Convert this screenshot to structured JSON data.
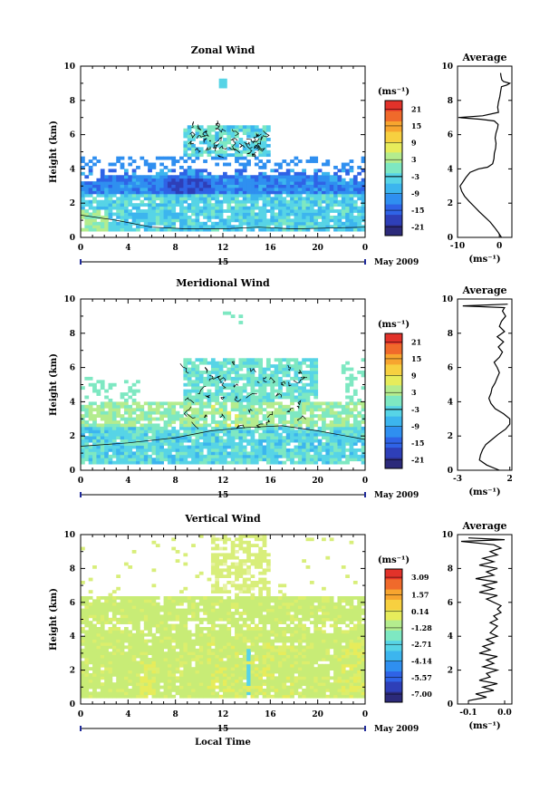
{
  "chart_data": [
    {
      "type": "heatmap",
      "title": "Zonal Wind",
      "ylabel": "Height (km)",
      "xticks": [
        "0",
        "4",
        "8",
        "12",
        "16",
        "20",
        "0"
      ],
      "yticks": [
        "0",
        "2",
        "4",
        "6",
        "8",
        "10"
      ],
      "xlim": [
        0,
        24
      ],
      "ylim": [
        0,
        10
      ],
      "date_axis": {
        "day": "15",
        "label": "May 2009"
      },
      "colorbar": {
        "unit": "(ms⁻¹)",
        "ticks": [
          "21",
          "15",
          "9",
          "3",
          "-3",
          "-9",
          "-15",
          "-21"
        ],
        "range": [
          -24,
          24
        ]
      },
      "average": {
        "title": "Average",
        "xlabel": "(ms⁻¹)",
        "xticks": [
          "-10",
          "0"
        ],
        "yticks": [
          "0",
          "2",
          "4",
          "6",
          "8",
          "10"
        ],
        "xlim": [
          -10,
          3
        ],
        "profile": [
          [
            0,
            0.5
          ],
          [
            0.3,
            -0.3
          ],
          [
            0.6,
            -1.2
          ],
          [
            0.9,
            -2.2
          ],
          [
            1.2,
            -3.5
          ],
          [
            1.5,
            -4.8
          ],
          [
            1.8,
            -6.0
          ],
          [
            2.1,
            -7.2
          ],
          [
            2.4,
            -8.3
          ],
          [
            2.7,
            -9.0
          ],
          [
            3.0,
            -9.4
          ],
          [
            3.2,
            -8.8
          ],
          [
            3.5,
            -8.0
          ],
          [
            3.8,
            -7.0
          ],
          [
            4.0,
            -5.0
          ],
          [
            4.1,
            -2.8
          ],
          [
            4.3,
            -1.6
          ],
          [
            4.6,
            -1.3
          ],
          [
            4.9,
            -1.2
          ],
          [
            5.2,
            -0.9
          ],
          [
            5.5,
            -0.8
          ],
          [
            5.8,
            -1.0
          ],
          [
            6.1,
            -0.8
          ],
          [
            6.4,
            -0.4
          ],
          [
            6.6,
            -0.3
          ],
          [
            6.8,
            -1.2
          ],
          [
            6.9,
            -4.5
          ],
          [
            7.0,
            -9.8
          ],
          [
            7.1,
            -4.0
          ],
          [
            7.3,
            -0.2
          ],
          [
            7.6,
            -0.4
          ],
          [
            7.9,
            -0.2
          ],
          [
            8.2,
            0.1
          ],
          [
            8.5,
            0.3
          ],
          [
            8.8,
            0.5
          ],
          [
            8.9,
            1.8
          ],
          [
            9.0,
            2.5
          ],
          [
            9.1,
            1.0
          ],
          [
            9.2,
            0.6
          ],
          [
            9.4,
            0.4
          ],
          [
            9.6,
            0.3
          ]
        ]
      }
    },
    {
      "type": "heatmap",
      "title": "Meridional Wind",
      "ylabel": "Height (km)",
      "xticks": [
        "0",
        "4",
        "8",
        "12",
        "16",
        "20",
        "0"
      ],
      "yticks": [
        "0",
        "2",
        "4",
        "6",
        "8",
        "10"
      ],
      "xlim": [
        0,
        24
      ],
      "ylim": [
        0,
        10
      ],
      "date_axis": {
        "day": "15",
        "label": "May 2009"
      },
      "colorbar": {
        "unit": "(ms⁻¹)",
        "ticks": [
          "21",
          "15",
          "9",
          "3",
          "-3",
          "-9",
          "-15",
          "-21"
        ],
        "range": [
          -24,
          24
        ]
      },
      "average": {
        "title": "Average",
        "xlabel": "(ms⁻¹)",
        "xticks": [
          "-3",
          "2"
        ],
        "yticks": [
          "0",
          "2",
          "4",
          "6",
          "8",
          "10"
        ],
        "xlim": [
          -3,
          2.2
        ],
        "profile": [
          [
            0,
            1.0
          ],
          [
            0.3,
            -0.2
          ],
          [
            0.6,
            -0.9
          ],
          [
            0.9,
            -0.8
          ],
          [
            1.2,
            -0.6
          ],
          [
            1.5,
            -0.3
          ],
          [
            1.8,
            0.3
          ],
          [
            2.1,
            0.9
          ],
          [
            2.4,
            1.6
          ],
          [
            2.7,
            2.0
          ],
          [
            3.0,
            2.0
          ],
          [
            3.3,
            1.4
          ],
          [
            3.6,
            0.6
          ],
          [
            3.9,
            0.2
          ],
          [
            4.2,
            0.0
          ],
          [
            4.5,
            0.2
          ],
          [
            4.8,
            0.3
          ],
          [
            5.1,
            0.6
          ],
          [
            5.4,
            0.8
          ],
          [
            5.7,
            1.0
          ],
          [
            6.0,
            0.8
          ],
          [
            6.3,
            0.5
          ],
          [
            6.6,
            1.0
          ],
          [
            6.9,
            1.3
          ],
          [
            7.2,
            0.9
          ],
          [
            7.5,
            1.4
          ],
          [
            7.8,
            0.8
          ],
          [
            8.1,
            1.5
          ],
          [
            8.4,
            1.0
          ],
          [
            8.7,
            1.2
          ],
          [
            9.0,
            1.6
          ],
          [
            9.3,
            1.3
          ],
          [
            9.5,
            1.5
          ],
          [
            9.6,
            -2.5
          ],
          [
            9.7,
            1.8
          ]
        ]
      }
    },
    {
      "type": "heatmap",
      "title": "Vertical Wind",
      "xlabel": "Local Time",
      "ylabel": "Height (km)",
      "xticks": [
        "0",
        "4",
        "8",
        "12",
        "16",
        "20",
        "0"
      ],
      "yticks": [
        "0",
        "2",
        "4",
        "6",
        "8",
        "10"
      ],
      "xlim": [
        0,
        24
      ],
      "ylim": [
        0,
        10
      ],
      "date_axis": {
        "day": "15",
        "label": "May 2009"
      },
      "colorbar": {
        "unit": "(ms⁻¹)",
        "ticks": [
          "3.09",
          "1.57",
          "0.14",
          "-1.28",
          "-2.71",
          "-4.14",
          "-5.57",
          "-7.00"
        ],
        "range": [
          -7.7,
          3.8
        ]
      },
      "average": {
        "title": "Average",
        "xlabel": "(ms⁻¹)",
        "xticks": [
          "-0.1",
          "0.0"
        ],
        "yticks": [
          "0",
          "2",
          "4",
          "6",
          "8",
          "10"
        ],
        "xlim": [
          -0.13,
          0.02
        ],
        "profile": [
          [
            0.2,
            -0.1
          ],
          [
            0.4,
            -0.05
          ],
          [
            0.6,
            -0.08
          ],
          [
            0.8,
            -0.03
          ],
          [
            1.0,
            -0.06
          ],
          [
            1.2,
            -0.02
          ],
          [
            1.4,
            -0.07
          ],
          [
            1.6,
            -0.04
          ],
          [
            1.8,
            -0.05
          ],
          [
            2.0,
            -0.02
          ],
          [
            2.2,
            -0.06
          ],
          [
            2.4,
            -0.03
          ],
          [
            2.6,
            -0.05
          ],
          [
            2.8,
            -0.02
          ],
          [
            3.0,
            -0.07
          ],
          [
            3.2,
            -0.04
          ],
          [
            3.4,
            -0.06
          ],
          [
            3.6,
            -0.03
          ],
          [
            3.8,
            -0.05
          ],
          [
            4.0,
            -0.02
          ],
          [
            4.2,
            -0.04
          ],
          [
            4.4,
            -0.03
          ],
          [
            4.6,
            -0.02
          ],
          [
            4.8,
            -0.04
          ],
          [
            5.0,
            -0.02
          ],
          [
            5.2,
            -0.03
          ],
          [
            5.4,
            -0.01
          ],
          [
            5.6,
            -0.02
          ],
          [
            5.8,
            -0.01
          ],
          [
            6.0,
            -0.03
          ],
          [
            6.2,
            -0.05
          ],
          [
            6.4,
            -0.02
          ],
          [
            6.6,
            -0.07
          ],
          [
            6.8,
            -0.03
          ],
          [
            7.0,
            -0.06
          ],
          [
            7.2,
            -0.02
          ],
          [
            7.4,
            -0.08
          ],
          [
            7.6,
            -0.03
          ],
          [
            7.8,
            -0.05
          ],
          [
            8.0,
            -0.02
          ],
          [
            8.2,
            -0.07
          ],
          [
            8.4,
            -0.03
          ],
          [
            8.6,
            -0.06
          ],
          [
            8.8,
            -0.02
          ],
          [
            9.0,
            -0.04
          ],
          [
            9.2,
            -0.01
          ],
          [
            9.4,
            -0.03
          ],
          [
            9.6,
            -0.12
          ],
          [
            9.7,
            0.0
          ],
          [
            9.8,
            -0.1
          ]
        ]
      }
    }
  ]
}
